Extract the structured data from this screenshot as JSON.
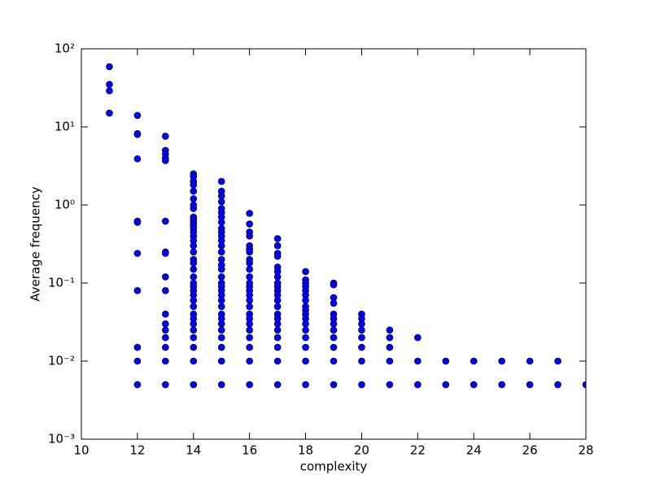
{
  "chart_data": {
    "type": "scatter",
    "xlabel": "complexity",
    "ylabel": "Average frequency",
    "log_y": true,
    "color": "#0000ff",
    "xlim": [
      10,
      28
    ],
    "xticks": [
      10,
      12,
      14,
      16,
      18,
      20,
      22,
      24,
      26,
      28
    ],
    "ylim": [
      0.001,
      100
    ],
    "yticks": [
      {
        "value": 0.001,
        "label": "10⁻³"
      },
      {
        "value": 0.01,
        "label": "10⁻²"
      },
      {
        "value": 0.1,
        "label": "10⁻¹"
      },
      {
        "value": 1,
        "label": "10⁰"
      },
      {
        "value": 10,
        "label": "10¹"
      },
      {
        "value": 100,
        "label": "10²"
      }
    ],
    "x": [
      11,
      11,
      11,
      11,
      12,
      12,
      12,
      12,
      12,
      12,
      12,
      12,
      12,
      12,
      12,
      13,
      13,
      13,
      13,
      13,
      13,
      13,
      13,
      13,
      13,
      13,
      13,
      13,
      13,
      13,
      13,
      13,
      14,
      14,
      14,
      14,
      14,
      14,
      14,
      14,
      14,
      14,
      14,
      14,
      14,
      14,
      14,
      14,
      14,
      14,
      14,
      14,
      14,
      14,
      14,
      14,
      14,
      14,
      14,
      14,
      14,
      14,
      14,
      14,
      14,
      14,
      14,
      14,
      15,
      15,
      15,
      15,
      15,
      15,
      15,
      15,
      15,
      15,
      15,
      15,
      15,
      15,
      15,
      15,
      15,
      15,
      15,
      15,
      15,
      15,
      15,
      15,
      15,
      15,
      15,
      15,
      15,
      15,
      15,
      15,
      16,
      16,
      16,
      16,
      16,
      16,
      16,
      16,
      16,
      16,
      16,
      16,
      16,
      16,
      16,
      16,
      16,
      16,
      16,
      16,
      16,
      16,
      16,
      16,
      16,
      17,
      17,
      17,
      17,
      17,
      17,
      17,
      17,
      17,
      17,
      17,
      17,
      17,
      17,
      17,
      17,
      17,
      17,
      17,
      17,
      17,
      18,
      18,
      18,
      18,
      18,
      18,
      18,
      18,
      18,
      18,
      18,
      18,
      18,
      18,
      18,
      18,
      18,
      19,
      19,
      19,
      19,
      19,
      19,
      19,
      19,
      19,
      19,
      19,
      19,
      20,
      20,
      20,
      20,
      20,
      20,
      20,
      20,
      21,
      21,
      21,
      21,
      21,
      22,
      22,
      22,
      23,
      23,
      24,
      24,
      25,
      25,
      26,
      26,
      27,
      27,
      28
    ],
    "values": [
      59,
      35,
      29,
      15,
      14,
      8.2,
      8,
      3.9,
      0.62,
      0.6,
      0.24,
      0.08,
      0.015,
      0.01,
      0.005,
      7.6,
      5,
      4.5,
      4,
      3.7,
      0.62,
      0.25,
      0.24,
      0.12,
      0.08,
      0.04,
      0.03,
      0.025,
      0.02,
      0.015,
      0.01,
      0.005,
      2.5,
      2.3,
      2.0,
      1.8,
      1.5,
      1.2,
      1.0,
      0.9,
      0.7,
      0.65,
      0.6,
      0.55,
      0.5,
      0.45,
      0.4,
      0.35,
      0.3,
      0.25,
      0.2,
      0.18,
      0.15,
      0.12,
      0.1,
      0.09,
      0.08,
      0.07,
      0.06,
      0.05,
      0.04,
      0.035,
      0.03,
      0.025,
      0.02,
      0.015,
      0.01,
      0.005,
      2.0,
      1.5,
      1.3,
      1.1,
      0.9,
      0.8,
      0.7,
      0.6,
      0.5,
      0.45,
      0.4,
      0.35,
      0.3,
      0.25,
      0.2,
      0.17,
      0.15,
      0.12,
      0.1,
      0.09,
      0.08,
      0.07,
      0.06,
      0.05,
      0.04,
      0.035,
      0.03,
      0.025,
      0.02,
      0.015,
      0.01,
      0.005,
      0.78,
      0.57,
      0.45,
      0.4,
      0.3,
      0.27,
      0.25,
      0.2,
      0.18,
      0.15,
      0.12,
      0.1,
      0.09,
      0.08,
      0.07,
      0.06,
      0.05,
      0.04,
      0.035,
      0.03,
      0.025,
      0.02,
      0.015,
      0.01,
      0.005,
      0.37,
      0.3,
      0.24,
      0.22,
      0.16,
      0.14,
      0.12,
      0.1,
      0.09,
      0.08,
      0.07,
      0.06,
      0.05,
      0.04,
      0.035,
      0.03,
      0.025,
      0.02,
      0.015,
      0.01,
      0.005,
      0.14,
      0.11,
      0.1,
      0.09,
      0.08,
      0.07,
      0.06,
      0.05,
      0.045,
      0.04,
      0.035,
      0.03,
      0.025,
      0.02,
      0.015,
      0.01,
      0.005,
      0.1,
      0.095,
      0.065,
      0.055,
      0.04,
      0.035,
      0.03,
      0.025,
      0.02,
      0.015,
      0.01,
      0.005,
      0.04,
      0.035,
      0.03,
      0.025,
      0.02,
      0.015,
      0.01,
      0.005,
      0.025,
      0.02,
      0.015,
      0.01,
      0.005,
      0.02,
      0.01,
      0.005,
      0.01,
      0.005,
      0.01,
      0.005,
      0.01,
      0.005,
      0.01,
      0.005,
      0.01,
      0.005,
      0.005
    ]
  }
}
